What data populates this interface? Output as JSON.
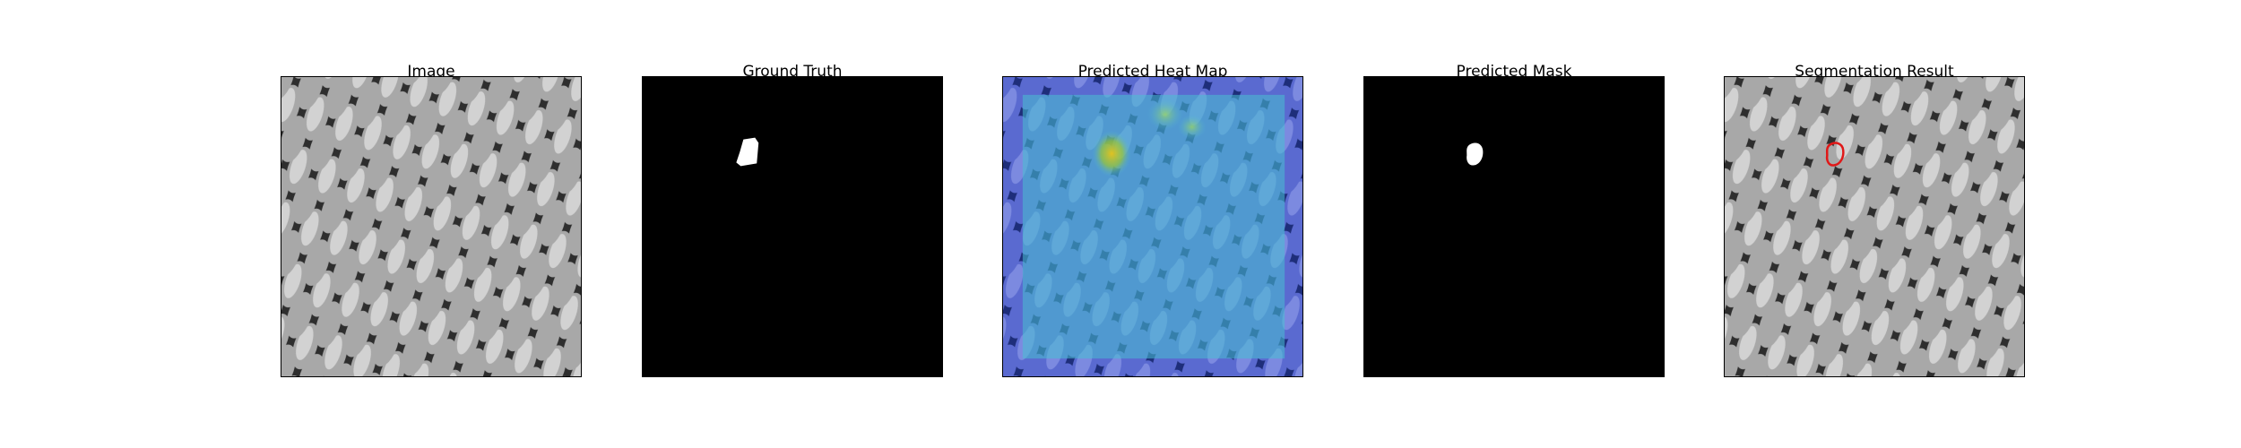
{
  "figure": {
    "panels": [
      {
        "id": "image",
        "title": "Image",
        "kind": "texture"
      },
      {
        "id": "ground_truth",
        "title": "Ground Truth",
        "kind": "mask"
      },
      {
        "id": "heatmap",
        "title": "Predicted Heat Map",
        "kind": "heatmap"
      },
      {
        "id": "pred_mask",
        "title": "Predicted Mask",
        "kind": "mask"
      },
      {
        "id": "segmentation",
        "title": "Segmentation Result",
        "kind": "texture"
      }
    ]
  },
  "colors": {
    "mask_background": "#000000",
    "mask_foreground": "#ffffff",
    "contour": "#e01818",
    "heat_border": "#3a3aa6",
    "heat_core": "#4fb8d8",
    "heat_hot": "#e0d020",
    "texture_light": "#c8c8c8",
    "texture_dark": "#2e2e2e"
  }
}
